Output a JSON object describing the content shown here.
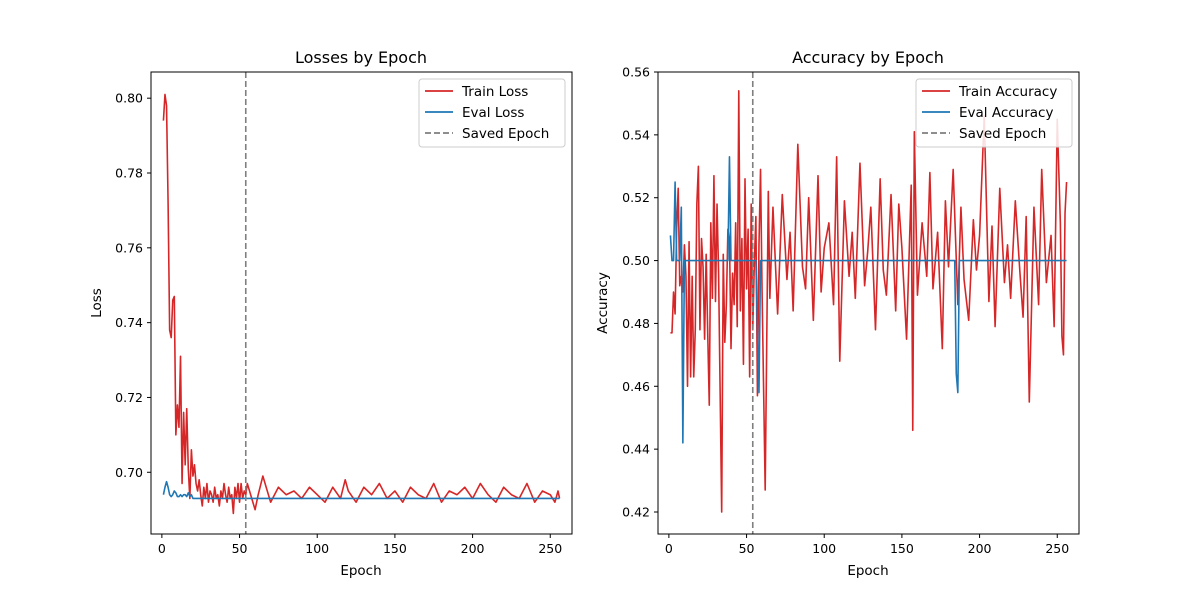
{
  "colors": {
    "train": "#d62728",
    "eval": "#1f77b4",
    "saved": "#7f7f7f"
  },
  "chart_data": [
    {
      "type": "line",
      "title": "Losses by Epoch",
      "xlabel": "Epoch",
      "ylabel": "Loss",
      "xlim": [
        -7,
        264
      ],
      "ylim": [
        0.6835,
        0.807
      ],
      "xticks": [
        0,
        50,
        100,
        150,
        200,
        250
      ],
      "yticks": [
        0.7,
        0.72,
        0.74,
        0.76,
        0.78,
        0.8
      ],
      "xtick_labels": [
        "0",
        "50",
        "100",
        "150",
        "200",
        "250"
      ],
      "ytick_labels": [
        "0.70",
        "0.72",
        "0.74",
        "0.76",
        "0.78",
        "0.80"
      ],
      "grid": false,
      "legend_position": "top-right",
      "legend": [
        "Train Loss",
        "Eval Loss",
        "Saved Epoch"
      ],
      "saved_epoch": 54,
      "series": [
        {
          "name": "Train Loss",
          "color_key": "train",
          "x": [
            1,
            2,
            3,
            4,
            5,
            6,
            7,
            8,
            9,
            10,
            11,
            12,
            13,
            14,
            15,
            16,
            17,
            18,
            19,
            20,
            21,
            22,
            23,
            24,
            25,
            26,
            27,
            28,
            29,
            30,
            31,
            32,
            33,
            34,
            35,
            36,
            37,
            38,
            39,
            40,
            41,
            42,
            43,
            44,
            45,
            46,
            47,
            48,
            49,
            50,
            51,
            52,
            53,
            54,
            55,
            60,
            62,
            65,
            70,
            75,
            80,
            85,
            90,
            95,
            100,
            105,
            110,
            115,
            118,
            120,
            125,
            130,
            135,
            140,
            145,
            150,
            155,
            160,
            165,
            170,
            175,
            180,
            185,
            190,
            195,
            200,
            205,
            210,
            215,
            220,
            225,
            230,
            235,
            240,
            245,
            250,
            253,
            255,
            256
          ],
          "y": [
            0.794,
            0.801,
            0.798,
            0.772,
            0.738,
            0.736,
            0.746,
            0.747,
            0.71,
            0.718,
            0.712,
            0.731,
            0.697,
            0.716,
            0.702,
            0.717,
            0.701,
            0.693,
            0.706,
            0.699,
            0.702,
            0.697,
            0.695,
            0.698,
            0.694,
            0.691,
            0.696,
            0.693,
            0.697,
            0.692,
            0.695,
            0.694,
            0.692,
            0.696,
            0.693,
            0.694,
            0.691,
            0.695,
            0.693,
            0.697,
            0.694,
            0.692,
            0.696,
            0.693,
            0.694,
            0.689,
            0.696,
            0.693,
            0.697,
            0.692,
            0.697,
            0.693,
            0.695,
            0.694,
            0.697,
            0.69,
            0.694,
            0.699,
            0.692,
            0.696,
            0.694,
            0.695,
            0.693,
            0.696,
            0.694,
            0.692,
            0.696,
            0.693,
            0.698,
            0.695,
            0.692,
            0.696,
            0.694,
            0.697,
            0.693,
            0.695,
            0.692,
            0.696,
            0.694,
            0.693,
            0.697,
            0.692,
            0.695,
            0.694,
            0.696,
            0.693,
            0.697,
            0.694,
            0.692,
            0.696,
            0.694,
            0.693,
            0.697,
            0.692,
            0.695,
            0.694,
            0.692,
            0.695,
            0.693
          ]
        },
        {
          "name": "Eval Loss",
          "color_key": "eval",
          "x": [
            1,
            2,
            3,
            4,
            5,
            6,
            7,
            8,
            9,
            10,
            11,
            12,
            13,
            14,
            15,
            16,
            17,
            18,
            19,
            20,
            22,
            25,
            30,
            40,
            50,
            60,
            80,
            100,
            120,
            150,
            180,
            200,
            220,
            240,
            256
          ],
          "y": [
            0.694,
            0.696,
            0.6975,
            0.696,
            0.694,
            0.6935,
            0.694,
            0.695,
            0.6945,
            0.6935,
            0.6935,
            0.694,
            0.6935,
            0.694,
            0.694,
            0.6935,
            0.6945,
            0.6935,
            0.694,
            0.693,
            0.693,
            0.693,
            0.693,
            0.693,
            0.693,
            0.693,
            0.693,
            0.693,
            0.693,
            0.693,
            0.693,
            0.693,
            0.693,
            0.693,
            0.693
          ]
        }
      ]
    },
    {
      "type": "line",
      "title": "Accuracy by Epoch",
      "xlabel": "Epoch",
      "ylabel": "Accuracy",
      "xlim": [
        -7,
        264
      ],
      "ylim": [
        0.413,
        0.56
      ],
      "xticks": [
        0,
        50,
        100,
        150,
        200,
        250
      ],
      "yticks": [
        0.42,
        0.44,
        0.46,
        0.48,
        0.5,
        0.52,
        0.54,
        0.56
      ],
      "xtick_labels": [
        "0",
        "50",
        "100",
        "150",
        "200",
        "250"
      ],
      "ytick_labels": [
        "0.42",
        "0.44",
        "0.46",
        "0.48",
        "0.50",
        "0.52",
        "0.54",
        "0.56"
      ],
      "grid": false,
      "legend_position": "top-right",
      "legend": [
        "Train Accuracy",
        "Eval Accuracy",
        "Saved Epoch"
      ],
      "saved_epoch": 54,
      "series": [
        {
          "name": "Train Accuracy",
          "color_key": "train",
          "x": [
            1,
            2,
            3,
            4,
            5,
            6,
            7,
            8,
            9,
            10,
            11,
            12,
            13,
            14,
            15,
            16,
            17,
            18,
            19,
            20,
            21,
            22,
            23,
            24,
            25,
            26,
            27,
            28,
            29,
            30,
            31,
            32,
            33,
            34,
            35,
            36,
            37,
            38,
            39,
            40,
            41,
            42,
            43,
            44,
            45,
            46,
            47,
            48,
            49,
            50,
            51,
            52,
            53,
            54,
            55,
            56,
            57,
            58,
            59,
            60,
            62,
            64,
            65,
            67,
            70,
            73,
            76,
            78,
            80,
            83,
            86,
            88,
            90,
            93,
            96,
            98,
            100,
            103,
            106,
            108,
            110,
            113,
            116,
            118,
            120,
            123,
            126,
            128,
            130,
            133,
            136,
            138,
            140,
            143,
            146,
            148,
            150,
            153,
            156,
            157,
            158,
            160,
            163,
            166,
            168,
            170,
            173,
            176,
            178,
            180,
            183,
            186,
            188,
            190,
            193,
            196,
            198,
            200,
            203,
            206,
            208,
            210,
            213,
            216,
            218,
            220,
            223,
            226,
            228,
            230,
            232,
            235,
            238,
            240,
            243,
            246,
            248,
            250,
            252,
            253,
            254,
            255,
            256
          ],
          "y": [
            0.477,
            0.477,
            0.49,
            0.483,
            0.51,
            0.523,
            0.492,
            0.495,
            0.49,
            0.505,
            0.495,
            0.46,
            0.506,
            0.463,
            0.495,
            0.463,
            0.478,
            0.518,
            0.53,
            0.478,
            0.507,
            0.498,
            0.475,
            0.502,
            0.477,
            0.454,
            0.512,
            0.488,
            0.527,
            0.487,
            0.518,
            0.496,
            0.458,
            0.42,
            0.502,
            0.474,
            0.486,
            0.51,
            0.507,
            0.472,
            0.496,
            0.486,
            0.512,
            0.479,
            0.554,
            0.484,
            0.507,
            0.467,
            0.526,
            0.491,
            0.51,
            0.463,
            0.518,
            0.478,
            0.499,
            0.514,
            0.457,
            0.505,
            0.529,
            0.49,
            0.427,
            0.522,
            0.488,
            0.517,
            0.483,
            0.521,
            0.494,
            0.509,
            0.484,
            0.537,
            0.498,
            0.491,
            0.52,
            0.481,
            0.527,
            0.49,
            0.504,
            0.512,
            0.486,
            0.533,
            0.468,
            0.519,
            0.495,
            0.509,
            0.488,
            0.531,
            0.492,
            0.503,
            0.517,
            0.478,
            0.526,
            0.497,
            0.489,
            0.521,
            0.484,
            0.518,
            0.504,
            0.475,
            0.524,
            0.446,
            0.541,
            0.489,
            0.512,
            0.495,
            0.528,
            0.491,
            0.509,
            0.472,
            0.519,
            0.498,
            0.529,
            0.486,
            0.517,
            0.494,
            0.481,
            0.513,
            0.497,
            0.508,
            0.546,
            0.487,
            0.511,
            0.479,
            0.523,
            0.493,
            0.505,
            0.488,
            0.519,
            0.496,
            0.482,
            0.514,
            0.455,
            0.517,
            0.486,
            0.529,
            0.493,
            0.508,
            0.479,
            0.545,
            0.512,
            0.476,
            0.47,
            0.515,
            0.525
          ]
        },
        {
          "name": "Eval Accuracy",
          "color_key": "eval",
          "x": [
            1,
            2,
            3,
            4,
            5,
            6,
            7,
            8,
            9,
            10,
            11,
            12,
            13,
            14,
            15,
            16,
            17,
            18,
            19,
            20,
            25,
            30,
            35,
            38,
            39,
            40,
            41,
            42,
            43,
            45,
            47,
            50,
            52,
            54,
            56,
            58,
            59,
            60,
            62,
            65,
            70,
            80,
            90,
            100,
            110,
            120,
            130,
            140,
            150,
            160,
            170,
            180,
            183,
            184,
            185,
            186,
            187,
            188,
            190,
            195,
            200,
            210,
            220,
            230,
            240,
            250,
            256
          ],
          "y": [
            0.508,
            0.5,
            0.5,
            0.525,
            0.5,
            0.5,
            0.5,
            0.517,
            0.442,
            0.5,
            0.5,
            0.5,
            0.5,
            0.5,
            0.5,
            0.5,
            0.5,
            0.5,
            0.5,
            0.5,
            0.5,
            0.5,
            0.5,
            0.5,
            0.533,
            0.5,
            0.5,
            0.5,
            0.5,
            0.5,
            0.5,
            0.5,
            0.5,
            0.5,
            0.5,
            0.458,
            0.5,
            0.5,
            0.5,
            0.5,
            0.5,
            0.5,
            0.5,
            0.5,
            0.5,
            0.5,
            0.5,
            0.5,
            0.5,
            0.5,
            0.5,
            0.5,
            0.5,
            0.5,
            0.464,
            0.458,
            0.5,
            0.5,
            0.5,
            0.5,
            0.5,
            0.5,
            0.5,
            0.5,
            0.5,
            0.5,
            0.5
          ]
        }
      ]
    }
  ]
}
